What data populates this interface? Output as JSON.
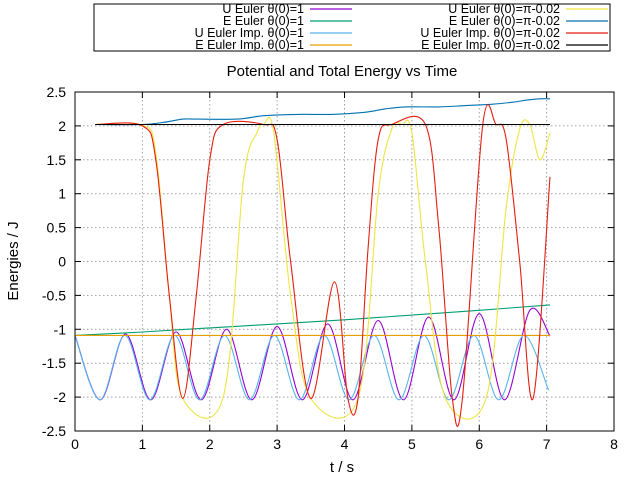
{
  "chart_data": {
    "type": "line",
    "title": "Potential and Total Energy vs Time",
    "xlabel": "t / s",
    "ylabel": "Energies / J",
    "xlim": [
      0,
      8
    ],
    "ylim": [
      -2.5,
      2.5
    ],
    "xticks": [
      "0",
      "1",
      "2",
      "3",
      "4",
      "5",
      "6",
      "7",
      "8"
    ],
    "yticks": [
      "-2.5",
      "-2",
      "-1.5",
      "-1",
      "-0.5",
      "0",
      "0.5",
      "1",
      "1.5",
      "2",
      "2.5"
    ],
    "grid": true,
    "legend_position": "top",
    "series": [
      {
        "name": "U Euler θ(0)=1",
        "color": "#9400d3",
        "x": [
          0.0,
          0.375,
          0.75,
          1.125,
          1.5,
          1.875,
          2.25,
          2.625,
          3.0,
          3.375,
          3.75,
          4.125,
          4.5,
          4.875,
          5.25,
          5.625,
          6.0,
          6.375,
          6.75,
          7.05
        ],
        "y": [
          -1.09,
          -2.04,
          -1.07,
          -2.04,
          -1.04,
          -2.04,
          -1.0,
          -2.04,
          -0.96,
          -2.04,
          -0.92,
          -2.04,
          -0.87,
          -2.04,
          -0.82,
          -2.04,
          -0.77,
          -2.04,
          -0.72,
          -1.1
        ]
      },
      {
        "name": "E Euler θ(0)=1",
        "color": "#009e73",
        "x": [
          0.0,
          1.0,
          2.0,
          3.0,
          4.0,
          5.0,
          6.0,
          7.05
        ],
        "y": [
          -1.09,
          -1.04,
          -0.98,
          -0.92,
          -0.86,
          -0.79,
          -0.72,
          -0.64
        ]
      },
      {
        "name": "U Euler Imp. θ(0)=1",
        "color": "#56b4e9",
        "x": [
          0.0,
          0.37,
          0.74,
          1.11,
          1.48,
          1.85,
          2.22,
          2.59,
          2.96,
          3.33,
          3.7,
          4.07,
          4.44,
          4.81,
          5.18,
          5.55,
          5.92,
          6.29,
          6.66,
          7.03
        ],
        "y": [
          -1.09,
          -2.04,
          -1.09,
          -2.04,
          -1.09,
          -2.04,
          -1.09,
          -2.04,
          -1.09,
          -2.04,
          -1.09,
          -2.04,
          -1.09,
          -2.04,
          -1.09,
          -2.04,
          -1.09,
          -2.04,
          -1.09,
          -1.9
        ]
      },
      {
        "name": "E Euler Imp. θ(0)=1",
        "color": "#e69f00",
        "x": [
          0.0,
          7.05
        ],
        "y": [
          -1.09,
          -1.09
        ]
      },
      {
        "name": "U Euler θ(0)=π-0.02",
        "color": "#f0e442",
        "x": [
          0.3,
          1.0,
          1.2,
          1.4,
          1.6,
          2.2,
          2.5,
          2.7,
          2.8,
          2.95,
          3.2,
          3.5,
          4.2,
          4.5,
          4.7,
          4.85,
          5.0,
          5.2,
          5.5,
          6.1,
          6.4,
          6.6,
          6.75,
          6.9,
          7.05
        ],
        "y": [
          2.02,
          2.01,
          1.6,
          -0.5,
          -2.02,
          -2.0,
          1.2,
          1.9,
          2.02,
          1.9,
          -0.5,
          -2.02,
          -2.02,
          1.0,
          1.95,
          2.02,
          1.9,
          0.0,
          -2.02,
          -2.02,
          0.8,
          1.95,
          2.02,
          1.5,
          1.9
        ]
      },
      {
        "name": "E Euler θ(0)=π-0.02",
        "color": "#0072b2",
        "x": [
          0.3,
          1.0,
          1.3,
          1.6,
          1.8,
          2.4,
          2.8,
          3.3,
          3.8,
          4.3,
          4.6,
          4.9,
          5.4,
          5.8,
          6.2,
          6.5,
          6.7,
          6.9,
          7.05
        ],
        "y": [
          2.02,
          2.02,
          2.05,
          2.1,
          2.1,
          2.1,
          2.15,
          2.17,
          2.17,
          2.2,
          2.25,
          2.28,
          2.28,
          2.3,
          2.32,
          2.35,
          2.38,
          2.4,
          2.4
        ]
      },
      {
        "name": "U Euler Imp. θ(0)=π-0.02",
        "color": "#e51e10",
        "x": [
          0.3,
          1.0,
          1.2,
          1.4,
          1.6,
          1.8,
          2.0,
          2.2,
          2.8,
          3.0,
          3.2,
          3.5,
          3.85,
          4.05,
          4.2,
          4.35,
          4.5,
          4.7,
          5.2,
          5.4,
          5.6,
          5.75,
          6.05,
          6.25,
          6.4,
          6.6,
          6.8,
          7.05
        ],
        "y": [
          2.02,
          2.0,
          1.5,
          -0.5,
          -2.02,
          -0.5,
          1.5,
          2.02,
          2.02,
          1.8,
          0.0,
          -2.02,
          -0.3,
          -2.02,
          -2.02,
          0.2,
          1.8,
          2.02,
          2.02,
          0.5,
          -2.02,
          -2.02,
          2.0,
          2.02,
          1.8,
          0.0,
          -2.02,
          1.25
        ]
      },
      {
        "name": "E Euler Imp. θ(0)=π-0.02",
        "color": "#000000",
        "x": [
          0.3,
          7.05
        ],
        "y": [
          2.02,
          2.02
        ]
      }
    ]
  }
}
